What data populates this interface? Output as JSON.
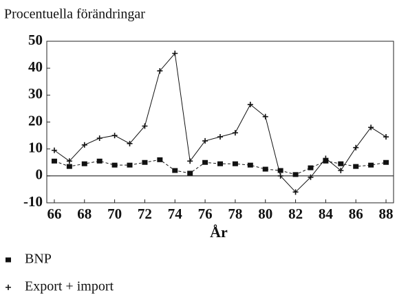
{
  "chart_data": {
    "type": "line",
    "title": "Procentuella förändringar",
    "xlabel": "År",
    "x": [
      66,
      67,
      68,
      69,
      70,
      71,
      72,
      73,
      74,
      75,
      76,
      77,
      78,
      79,
      80,
      81,
      82,
      83,
      84,
      85,
      86,
      87,
      88
    ],
    "series": [
      {
        "name": "BNP",
        "color": "#111111",
        "marker": "square",
        "dashed": true,
        "values": [
          5.5,
          3.5,
          4.5,
          5.5,
          4,
          4,
          5,
          6,
          2,
          1,
          5,
          4.5,
          4.5,
          4,
          2.5,
          2,
          0.5,
          3,
          5.5,
          4.5,
          3.5,
          4,
          5
        ]
      },
      {
        "name": "Export + import",
        "color": "#111111",
        "marker": "plus",
        "dashed": false,
        "values": [
          9.5,
          5.5,
          11.5,
          14,
          15,
          12,
          18.5,
          39,
          45.5,
          5.5,
          13,
          14.5,
          16,
          26.5,
          22,
          0,
          -6,
          -0.5,
          6.5,
          2,
          10.5,
          18,
          14.5
        ]
      }
    ],
    "xlim": [
      65.5,
      88.5
    ],
    "xticks": [
      66,
      68,
      70,
      72,
      74,
      76,
      78,
      80,
      82,
      84,
      86,
      88
    ],
    "ylim": [
      -10,
      50
    ],
    "yticks": [
      -10,
      0,
      10,
      20,
      30,
      40,
      50
    ],
    "zero_line": true
  }
}
